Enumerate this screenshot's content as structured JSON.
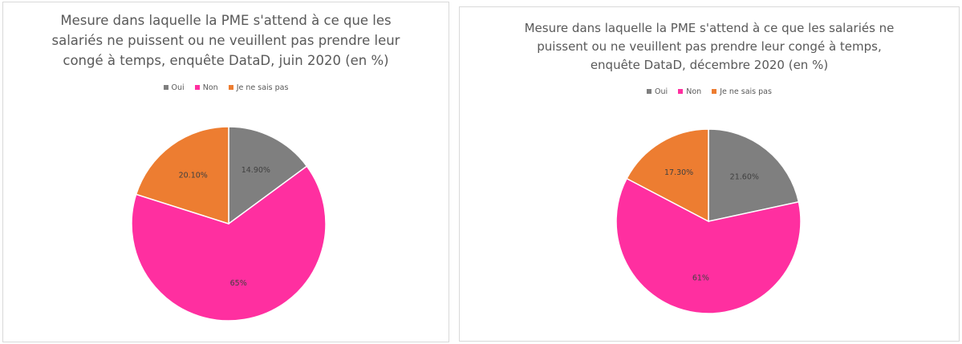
{
  "chart_data": [
    {
      "type": "pie",
      "title_lines": [
        "Mesure dans laquelle la PME s'attend à ce que les",
        "salariés ne puissent ou ne veuillent pas prendre leur",
        "congé à temps, enquête DataD, juin 2020 (en %)"
      ],
      "legend_position": "top",
      "slices": [
        {
          "label": "Oui",
          "value": 14.9,
          "display": "14.90%",
          "color": "#7f7f7f"
        },
        {
          "label": "Non",
          "value": 65,
          "display": "65%",
          "color": "#ff2fa0"
        },
        {
          "label": "Je ne sais pas",
          "value": 20.1,
          "display": "20.10%",
          "color": "#ed7d31"
        }
      ]
    },
    {
      "type": "pie",
      "title_lines": [
        "Mesure dans laquelle la PME s'attend à ce que les salariés ne",
        "puissent ou ne veuillent pas prendre leur congé à temps,",
        "enquête DataD, décembre 2020 (en %)"
      ],
      "legend_position": "top",
      "slices": [
        {
          "label": "Oui",
          "value": 21.6,
          "display": "21.60%",
          "color": "#7f7f7f"
        },
        {
          "label": "Non",
          "value": 61,
          "display": "61%",
          "color": "#ff2fa0"
        },
        {
          "label": "Je ne sais pas",
          "value": 17.3,
          "display": "17.30%",
          "color": "#ed7d31"
        }
      ]
    }
  ]
}
